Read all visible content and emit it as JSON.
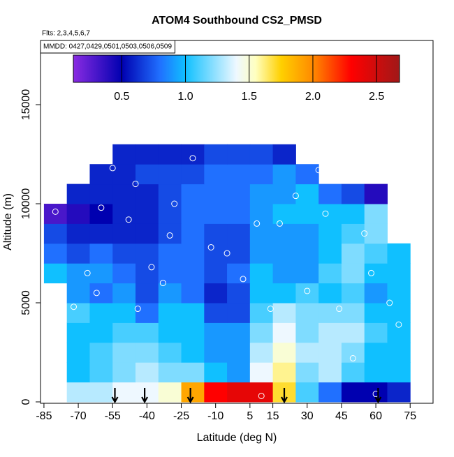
{
  "chart_data": {
    "type": "heatmap",
    "title": "ATOM4 Southbound CS2_PMSD",
    "subtitle": "Flts: 2,3,4,5,6,7",
    "annotation": "MMDD: 0427,0429,0501,0503,0506,0509",
    "x_label": "Latitude (deg N)",
    "y_label": "Altitude (m)",
    "xlim": [
      -86.5,
      85
    ],
    "ylim": [
      -70,
      18240
    ],
    "xticks": [
      -85,
      -70,
      -55,
      -40,
      -25,
      -10,
      5,
      15,
      30,
      45,
      60,
      75
    ],
    "yticks": [
      0,
      5000,
      10000,
      15000
    ],
    "x_edges": [
      -85,
      -75,
      -65,
      -55,
      -45,
      -35,
      -25,
      -15,
      -5,
      5,
      15,
      25,
      35,
      45,
      55,
      65,
      75
    ],
    "y_edges": [
      0,
      1000,
      2000,
      3000,
      4000,
      5000,
      6000,
      7000,
      8000,
      9000,
      10000,
      11000,
      12000,
      13000
    ],
    "z": [
      [
        null,
        1.3,
        1.3,
        1.4,
        1.4,
        1.5,
        1.9,
        2.3,
        2.4,
        2.4,
        1.7,
        1.1,
        0.8,
        0.5,
        0.5,
        0.6
      ],
      [
        null,
        1.0,
        1.1,
        1.2,
        1.3,
        1.2,
        1.2,
        1.0,
        0.9,
        1.4,
        1.6,
        1.2,
        1.3,
        1.1,
        1.0,
        1.0
      ],
      [
        null,
        1.0,
        1.1,
        1.2,
        1.2,
        1.1,
        1.0,
        0.9,
        0.9,
        1.3,
        1.5,
        1.3,
        1.3,
        1.2,
        1.0,
        1.0
      ],
      [
        null,
        1.0,
        1.0,
        1.1,
        1.1,
        1.0,
        1.0,
        0.9,
        0.9,
        1.2,
        1.4,
        1.2,
        1.3,
        1.3,
        1.1,
        1.0
      ],
      [
        null,
        1.1,
        1.0,
        1.0,
        0.8,
        1.0,
        1.0,
        0.7,
        0.7,
        1.1,
        1.3,
        1.2,
        1.2,
        1.2,
        1.0,
        1.0
      ],
      [
        null,
        0.9,
        0.8,
        0.9,
        0.7,
        0.9,
        0.8,
        0.6,
        0.7,
        1.0,
        1.0,
        1.1,
        1.0,
        1.1,
        0.9,
        1.0
      ],
      [
        1.0,
        0.9,
        0.9,
        0.8,
        0.7,
        0.8,
        0.8,
        0.7,
        0.8,
        1.0,
        0.9,
        0.9,
        1.1,
        1.2,
        1.0,
        1.0
      ],
      [
        0.8,
        0.7,
        0.8,
        0.7,
        0.7,
        0.8,
        0.8,
        0.7,
        0.7,
        0.9,
        0.9,
        0.9,
        1.0,
        1.2,
        1.1,
        1.0
      ],
      [
        0.7,
        0.6,
        0.6,
        0.6,
        0.6,
        0.7,
        0.8,
        0.7,
        0.7,
        0.9,
        0.9,
        0.9,
        1.0,
        1.1,
        1.2,
        null
      ],
      [
        0.3,
        0.4,
        0.5,
        0.6,
        0.6,
        0.7,
        0.8,
        0.8,
        0.8,
        0.9,
        1.0,
        1.0,
        1.0,
        1.0,
        1.2,
        null
      ],
      [
        null,
        0.6,
        0.6,
        0.6,
        0.6,
        0.7,
        0.8,
        0.8,
        0.8,
        0.9,
        0.9,
        1.0,
        0.8,
        0.7,
        0.4,
        null
      ],
      [
        null,
        null,
        0.6,
        0.6,
        0.7,
        0.7,
        0.7,
        0.8,
        0.8,
        0.8,
        0.9,
        0.8,
        null,
        null,
        null,
        null
      ],
      [
        null,
        null,
        null,
        0.6,
        0.6,
        0.6,
        0.6,
        0.7,
        0.7,
        0.7,
        0.6,
        null,
        null,
        null,
        null,
        null
      ]
    ],
    "points": {
      "x": [
        -80,
        -72,
        -66,
        -60,
        -55,
        -48,
        -44,
        -38,
        -33,
        -28,
        -20,
        -12,
        -5,
        2,
        8,
        14,
        18,
        25,
        30,
        38,
        44,
        50,
        55,
        60,
        66,
        70,
        -62,
        -45,
        -30,
        10,
        35,
        58
      ],
      "y": [
        9600,
        4800,
        6500,
        9800,
        11800,
        9200,
        4700,
        6800,
        6000,
        10000,
        12300,
        7800,
        7500,
        6200,
        9000,
        4700,
        9000,
        10400,
        5600,
        9500,
        4700,
        2200,
        8500,
        400,
        5000,
        3900,
        5500,
        11000,
        8400,
        300,
        11700,
        6500
      ]
    },
    "arrows": [
      -54,
      -41,
      -21,
      20,
      61
    ],
    "colorbar": {
      "range": [
        0.12,
        2.68
      ],
      "ticks": [
        0.5,
        {
          "value": 1,
          "label": "1.0"
        },
        1.5,
        {
          "value": 2,
          "label": "2.0"
        },
        2.5
      ],
      "stops": [
        [
          0.12,
          "#8a2be2"
        ],
        [
          0.5,
          "#0000b0"
        ],
        [
          0.8,
          "#2070ff"
        ],
        [
          1.0,
          "#10c0ff"
        ],
        [
          1.4,
          "#eef8ff"
        ],
        [
          1.55,
          "#ffffc0"
        ],
        [
          1.75,
          "#ffd000"
        ],
        [
          2.0,
          "#ff8a00"
        ],
        [
          2.3,
          "#ff0000"
        ],
        [
          2.68,
          "#a01818"
        ]
      ]
    }
  }
}
